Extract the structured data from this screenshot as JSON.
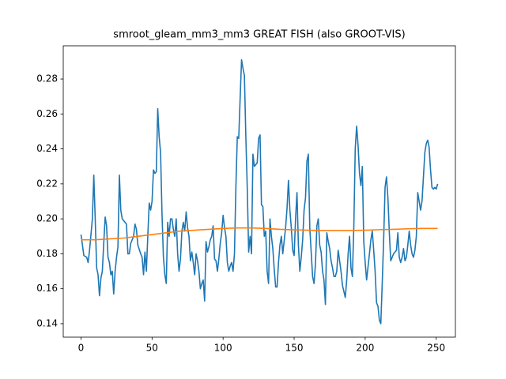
{
  "chart_data": {
    "type": "line",
    "title": "smroot_gleam_mm3_mm3 GREAT FISH (also GROOT-VIS)",
    "xlim": [
      -12.5,
      263.5
    ],
    "xticks": [
      0,
      50,
      100,
      150,
      200,
      250
    ],
    "ylim": [
      0.1323,
      0.299
    ],
    "yticks": [
      0.14,
      0.16,
      0.18,
      {
        "value": 0.2,
        "label": "0.20"
      },
      0.22,
      0.24,
      0.26,
      0.28
    ],
    "series": [
      {
        "color": "#1f77b4",
        "x": [
          0,
          2,
          4,
          5,
          6,
          8,
          9,
          10,
          11,
          12,
          13,
          14,
          15,
          16,
          17,
          18,
          19,
          20,
          21,
          22,
          23,
          24,
          25,
          26,
          27,
          28,
          29,
          30,
          32,
          33,
          34,
          35,
          37,
          38,
          39,
          40,
          42,
          43,
          44,
          45,
          46,
          47,
          48,
          49,
          50,
          51,
          52,
          53,
          54,
          55,
          56,
          57,
          58,
          59,
          60,
          61,
          62,
          63,
          64,
          65,
          66,
          67,
          68,
          69,
          70,
          71,
          72,
          73,
          74,
          75,
          76,
          77,
          78,
          79,
          80,
          81,
          82,
          83,
          84,
          85,
          86,
          87,
          88,
          89,
          90,
          91,
          92,
          93,
          94,
          95,
          96,
          97,
          98,
          99,
          100,
          101,
          102,
          103,
          104,
          105,
          106,
          107,
          108,
          109,
          110,
          111,
          112,
          113,
          114,
          115,
          116,
          117,
          118,
          119,
          120,
          121,
          122,
          124,
          125,
          126,
          127,
          128,
          129,
          130,
          131,
          132,
          133,
          134,
          135,
          136,
          137,
          138,
          139,
          140,
          141,
          142,
          144,
          145,
          146,
          147,
          148,
          149,
          150,
          151,
          152,
          153,
          154,
          155,
          156,
          157,
          158,
          159,
          160,
          161,
          163,
          164,
          165,
          166,
          167,
          168,
          169,
          170,
          171,
          172,
          173,
          174,
          175,
          176,
          177,
          178,
          179,
          180,
          181,
          183,
          184,
          186,
          187,
          188,
          189,
          190,
          191,
          192,
          193,
          194,
          195,
          196,
          197,
          198,
          199,
          200,
          201,
          203,
          204,
          205,
          206,
          207,
          208,
          209,
          210,
          211,
          212,
          213,
          214,
          215,
          216,
          217,
          218,
          219,
          220,
          222,
          223,
          224,
          225,
          226,
          227,
          228,
          229,
          230,
          231,
          232,
          233,
          234,
          235,
          236,
          237,
          238,
          239,
          240,
          242,
          243,
          244,
          245,
          246,
          247,
          248,
          249,
          250,
          251
        ],
        "values": [
          0.191,
          0.179,
          0.178,
          0.175,
          0.182,
          0.2,
          0.225,
          0.2,
          0.172,
          0.168,
          0.156,
          0.166,
          0.17,
          0.186,
          0.201,
          0.196,
          0.178,
          0.175,
          0.168,
          0.17,
          0.157,
          0.17,
          0.178,
          0.184,
          0.225,
          0.205,
          0.2,
          0.199,
          0.197,
          0.18,
          0.18,
          0.186,
          0.19,
          0.197,
          0.194,
          0.185,
          0.18,
          0.178,
          0.168,
          0.181,
          0.17,
          0.19,
          0.209,
          0.205,
          0.21,
          0.228,
          0.226,
          0.227,
          0.263,
          0.247,
          0.238,
          0.203,
          0.178,
          0.168,
          0.163,
          0.198,
          0.19,
          0.2,
          0.2,
          0.194,
          0.19,
          0.2,
          0.18,
          0.17,
          0.177,
          0.193,
          0.198,
          0.193,
          0.204,
          0.195,
          0.19,
          0.176,
          0.181,
          0.175,
          0.168,
          0.18,
          0.176,
          0.17,
          0.16,
          0.163,
          0.165,
          0.153,
          0.187,
          0.181,
          0.184,
          0.188,
          0.19,
          0.196,
          0.177,
          0.176,
          0.17,
          0.177,
          0.186,
          0.192,
          0.202,
          0.195,
          0.19,
          0.175,
          0.17,
          0.173,
          0.175,
          0.17,
          0.18,
          0.218,
          0.247,
          0.246,
          0.269,
          0.291,
          0.286,
          0.282,
          0.247,
          0.218,
          0.181,
          0.19,
          0.18,
          0.237,
          0.23,
          0.232,
          0.246,
          0.248,
          0.208,
          0.207,
          0.19,
          0.193,
          0.17,
          0.163,
          0.2,
          0.19,
          0.183,
          0.171,
          0.161,
          0.161,
          0.175,
          0.185,
          0.19,
          0.18,
          0.195,
          0.206,
          0.222,
          0.205,
          0.195,
          0.182,
          0.179,
          0.2,
          0.215,
          0.185,
          0.17,
          0.178,
          0.188,
          0.205,
          0.212,
          0.233,
          0.237,
          0.195,
          0.167,
          0.163,
          0.174,
          0.196,
          0.2,
          0.185,
          0.181,
          0.17,
          0.165,
          0.151,
          0.192,
          0.187,
          0.183,
          0.176,
          0.172,
          0.167,
          0.167,
          0.17,
          0.182,
          0.17,
          0.162,
          0.155,
          0.165,
          0.18,
          0.19,
          0.172,
          0.167,
          0.195,
          0.24,
          0.253,
          0.242,
          0.226,
          0.219,
          0.23,
          0.187,
          0.175,
          0.165,
          0.18,
          0.188,
          0.193,
          0.182,
          0.17,
          0.152,
          0.15,
          0.142,
          0.14,
          0.163,
          0.188,
          0.218,
          0.224,
          0.212,
          0.192,
          0.176,
          0.178,
          0.18,
          0.182,
          0.192,
          0.178,
          0.175,
          0.178,
          0.183,
          0.176,
          0.178,
          0.185,
          0.193,
          0.185,
          0.18,
          0.178,
          0.182,
          0.19,
          0.215,
          0.21,
          0.205,
          0.21,
          0.238,
          0.243,
          0.245,
          0.241,
          0.228,
          0.218,
          0.217,
          0.218,
          0.217,
          0.22
        ]
      },
      {
        "color": "#ff7f0e",
        "x": [
          0,
          10,
          20,
          30,
          40,
          50,
          60,
          70,
          80,
          90,
          100,
          110,
          120,
          130,
          140,
          150,
          160,
          170,
          180,
          190,
          200,
          210,
          220,
          230,
          240,
          251
        ],
        "values": [
          0.188,
          0.188,
          0.1885,
          0.189,
          0.19,
          0.191,
          0.192,
          0.193,
          0.1935,
          0.194,
          0.1945,
          0.1948,
          0.1948,
          0.1945,
          0.194,
          0.1937,
          0.1935,
          0.1933,
          0.1933,
          0.1933,
          0.1935,
          0.1938,
          0.194,
          0.1943,
          0.1945,
          0.1945
        ]
      }
    ]
  }
}
